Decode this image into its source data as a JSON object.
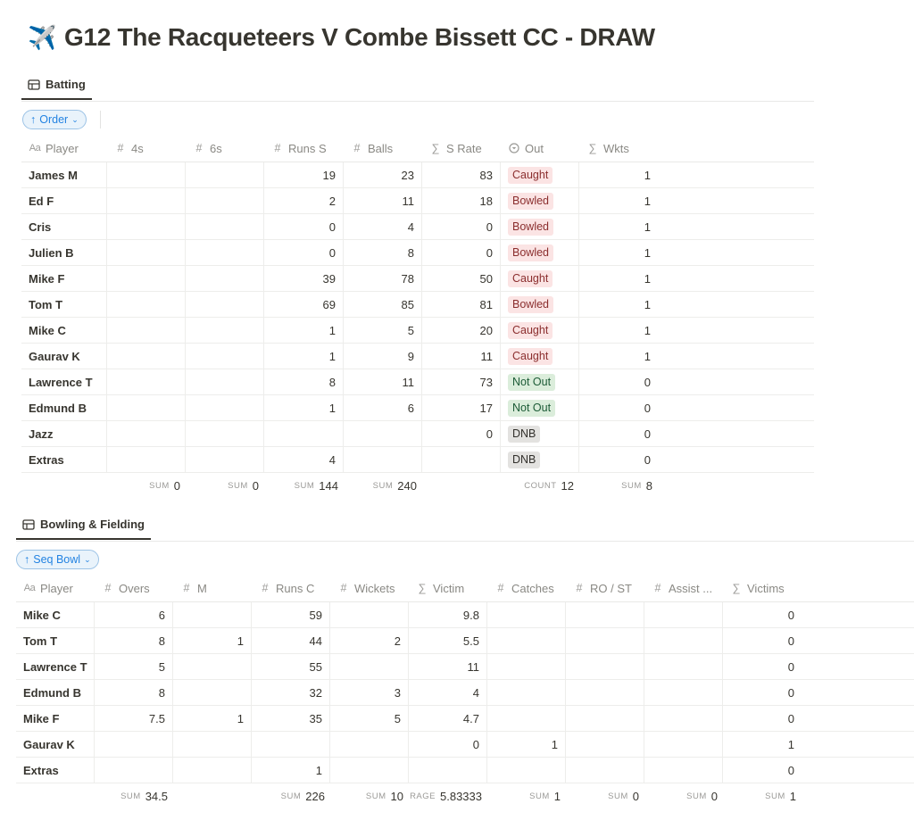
{
  "page": {
    "icon_emoji": "✈️",
    "title": "G12 The Racqueteers V Combe Bissett CC - DRAW"
  },
  "batting": {
    "tab_label": "Batting",
    "sort_label": "Order",
    "columns": [
      {
        "label": "Player",
        "icon": "Aa"
      },
      {
        "label": "4s",
        "icon": "#"
      },
      {
        "label": "6s",
        "icon": "#"
      },
      {
        "label": "Runs S",
        "icon": "#"
      },
      {
        "label": "Balls",
        "icon": "#"
      },
      {
        "label": "S Rate",
        "icon": "∑"
      },
      {
        "label": "Out",
        "icon": "select"
      },
      {
        "label": "Wkts",
        "icon": "∑"
      }
    ],
    "rows": [
      {
        "player": "James M",
        "fours": "",
        "sixes": "",
        "runs": "19",
        "balls": "23",
        "rate": "83",
        "out": "Caught",
        "wkts": "1"
      },
      {
        "player": "Ed F",
        "fours": "",
        "sixes": "",
        "runs": "2",
        "balls": "11",
        "rate": "18",
        "out": "Bowled",
        "wkts": "1"
      },
      {
        "player": "Cris",
        "fours": "",
        "sixes": "",
        "runs": "0",
        "balls": "4",
        "rate": "0",
        "out": "Bowled",
        "wkts": "1"
      },
      {
        "player": "Julien B",
        "fours": "",
        "sixes": "",
        "runs": "0",
        "balls": "8",
        "rate": "0",
        "out": "Bowled",
        "wkts": "1"
      },
      {
        "player": "Mike F",
        "fours": "",
        "sixes": "",
        "runs": "39",
        "balls": "78",
        "rate": "50",
        "out": "Caught",
        "wkts": "1"
      },
      {
        "player": "Tom T",
        "fours": "",
        "sixes": "",
        "runs": "69",
        "balls": "85",
        "rate": "81",
        "out": "Bowled",
        "wkts": "1"
      },
      {
        "player": "Mike C",
        "fours": "",
        "sixes": "",
        "runs": "1",
        "balls": "5",
        "rate": "20",
        "out": "Caught",
        "wkts": "1"
      },
      {
        "player": "Gaurav K",
        "fours": "",
        "sixes": "",
        "runs": "1",
        "balls": "9",
        "rate": "11",
        "out": "Caught",
        "wkts": "1"
      },
      {
        "player": "Lawrence T",
        "fours": "",
        "sixes": "",
        "runs": "8",
        "balls": "11",
        "rate": "73",
        "out": "Not Out",
        "wkts": "0"
      },
      {
        "player": "Edmund B",
        "fours": "",
        "sixes": "",
        "runs": "1",
        "balls": "6",
        "rate": "17",
        "out": "Not Out",
        "wkts": "0"
      },
      {
        "player": "Jazz",
        "fours": "",
        "sixes": "",
        "runs": "",
        "balls": "",
        "rate": "0",
        "out": "DNB",
        "wkts": "0"
      },
      {
        "player": "Extras",
        "fours": "",
        "sixes": "",
        "runs": "4",
        "balls": "",
        "rate": "",
        "out": "DNB",
        "wkts": "0"
      }
    ],
    "totals": [
      {
        "label": "",
        "value": ""
      },
      {
        "label": "SUM",
        "value": "0"
      },
      {
        "label": "SUM",
        "value": "0"
      },
      {
        "label": "SUM",
        "value": "144"
      },
      {
        "label": "SUM",
        "value": "240"
      },
      {
        "label": "",
        "value": ""
      },
      {
        "label": "COUNT",
        "value": "12"
      },
      {
        "label": "SUM",
        "value": "8"
      }
    ]
  },
  "bowling": {
    "tab_label": "Bowling & Fielding",
    "sort_label": "Seq Bowl",
    "columns": [
      {
        "label": "Player",
        "icon": "Aa"
      },
      {
        "label": "Overs",
        "icon": "#"
      },
      {
        "label": "M",
        "icon": "#"
      },
      {
        "label": "Runs C",
        "icon": "#"
      },
      {
        "label": "Wickets",
        "icon": "#"
      },
      {
        "label": "Victim",
        "icon": "∑"
      },
      {
        "label": "Catches",
        "icon": "#"
      },
      {
        "label": "RO / ST",
        "icon": "#"
      },
      {
        "label": "Assist ...",
        "icon": "#"
      },
      {
        "label": "Victims",
        "icon": "∑"
      }
    ],
    "rows": [
      {
        "player": "Mike C",
        "overs": "6",
        "m": "",
        "runs": "59",
        "wickets": "",
        "victim": "9.8",
        "catches": "",
        "rost": "",
        "assist": "",
        "victims": "0"
      },
      {
        "player": "Tom T",
        "overs": "8",
        "m": "1",
        "runs": "44",
        "wickets": "2",
        "victim": "5.5",
        "catches": "",
        "rost": "",
        "assist": "",
        "victims": "0"
      },
      {
        "player": "Lawrence T",
        "overs": "5",
        "m": "",
        "runs": "55",
        "wickets": "",
        "victim": "11",
        "catches": "",
        "rost": "",
        "assist": "",
        "victims": "0"
      },
      {
        "player": "Edmund B",
        "overs": "8",
        "m": "",
        "runs": "32",
        "wickets": "3",
        "victim": "4",
        "catches": "",
        "rost": "",
        "assist": "",
        "victims": "0"
      },
      {
        "player": "Mike F",
        "overs": "7.5",
        "m": "1",
        "runs": "35",
        "wickets": "5",
        "victim": "4.7",
        "catches": "",
        "rost": "",
        "assist": "",
        "victims": "0"
      },
      {
        "player": "Gaurav K",
        "overs": "",
        "m": "",
        "runs": "",
        "wickets": "",
        "victim": "0",
        "catches": "1",
        "rost": "",
        "assist": "",
        "victims": "1"
      },
      {
        "player": "Extras",
        "overs": "",
        "m": "",
        "runs": "1",
        "wickets": "",
        "victim": "",
        "catches": "",
        "rost": "",
        "assist": "",
        "victims": "0"
      }
    ],
    "totals": [
      {
        "label": "",
        "value": ""
      },
      {
        "label": "SUM",
        "value": "34.5"
      },
      {
        "label": "",
        "value": ""
      },
      {
        "label": "SUM",
        "value": "226"
      },
      {
        "label": "SUM",
        "value": "10"
      },
      {
        "label": "RAGE",
        "value": "5.83333"
      },
      {
        "label": "SUM",
        "value": "1"
      },
      {
        "label": "SUM",
        "value": "0"
      },
      {
        "label": "SUM",
        "value": "0"
      },
      {
        "label": "SUM",
        "value": "1"
      }
    ]
  }
}
